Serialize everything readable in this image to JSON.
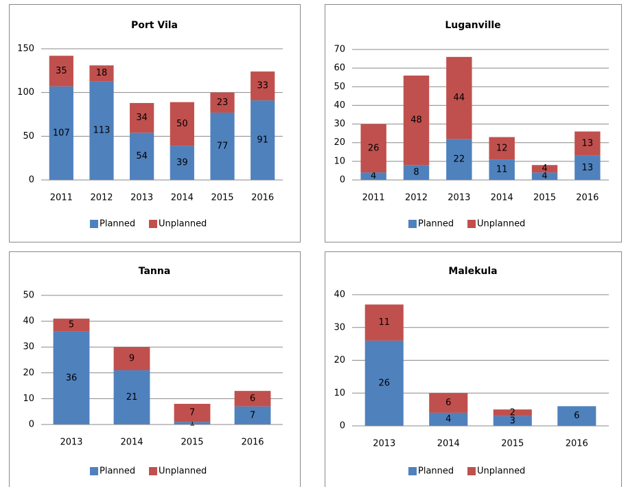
{
  "chart_data": [
    {
      "type": "bar",
      "title": "Port Vila",
      "categories": [
        "2011",
        "2012",
        "2013",
        "2014",
        "2015",
        "2016"
      ],
      "series": [
        {
          "name": "Planned",
          "color": "#4f81bd",
          "values": [
            107,
            113,
            54,
            39,
            77,
            91
          ]
        },
        {
          "name": "Unplanned",
          "color": "#c0504d",
          "values": [
            35,
            18,
            34,
            50,
            23,
            33
          ]
        }
      ],
      "ylim": [
        0,
        150
      ],
      "yticks": [
        0,
        50,
        100,
        150
      ],
      "grid": true,
      "stacked": true,
      "legend": "bottom"
    },
    {
      "type": "bar",
      "title": "Luganville",
      "categories": [
        "2011",
        "2012",
        "2013",
        "2014",
        "2015",
        "2016"
      ],
      "series": [
        {
          "name": "Planned",
          "color": "#4f81bd",
          "values": [
            4,
            8,
            22,
            11,
            4,
            13
          ]
        },
        {
          "name": "Unplanned",
          "color": "#c0504d",
          "values": [
            26,
            48,
            44,
            12,
            4,
            13
          ]
        }
      ],
      "ylim": [
        0,
        70
      ],
      "yticks": [
        0,
        10,
        20,
        30,
        40,
        50,
        60,
        70
      ],
      "grid": true,
      "stacked": true,
      "legend": "bottom"
    },
    {
      "type": "bar",
      "title": "Tanna",
      "categories": [
        "2013",
        "2014",
        "2015",
        "2016"
      ],
      "series": [
        {
          "name": "Planned",
          "color": "#4f81bd",
          "values": [
            36,
            21,
            1,
            7
          ]
        },
        {
          "name": "Unplanned",
          "color": "#c0504d",
          "values": [
            5,
            9,
            7,
            6
          ]
        }
      ],
      "ylim": [
        0,
        50
      ],
      "yticks": [
        0,
        10,
        20,
        30,
        40,
        50
      ],
      "grid": true,
      "stacked": true,
      "legend": "bottom"
    },
    {
      "type": "bar",
      "title": "Malekula",
      "categories": [
        "2013",
        "2014",
        "2015",
        "2016"
      ],
      "series": [
        {
          "name": "Planned",
          "color": "#4f81bd",
          "values": [
            26,
            4,
            3,
            6
          ]
        },
        {
          "name": "Unplanned",
          "color": "#c0504d",
          "values": [
            11,
            6,
            2,
            null
          ]
        }
      ],
      "ylim": [
        0,
        40
      ],
      "yticks": [
        0,
        10,
        20,
        30,
        40
      ],
      "grid": true,
      "stacked": true,
      "legend": "bottom"
    }
  ]
}
